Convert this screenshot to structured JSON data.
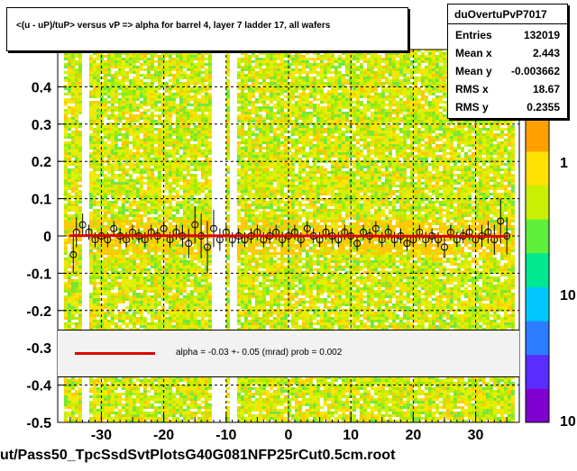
{
  "title": "<(u - uP)/tuP> versus   vP => alpha for barrel 4, layer 7 ladder 17, all wafers",
  "stats": {
    "name": "duOvertuPvP7017",
    "rows": [
      {
        "label": "Entries",
        "value": "132019"
      },
      {
        "label": "Mean x",
        "value": "2.443"
      },
      {
        "label": "Mean y",
        "value": "-0.003662"
      },
      {
        "label": "RMS x",
        "value": "18.67"
      },
      {
        "label": "RMS y",
        "value": "0.2355"
      }
    ]
  },
  "fit": {
    "text": "alpha =   -0.03 +-  0.05 (mrad) prob = 0.002",
    "line_color": "#e00000"
  },
  "footer": "ut/Pass50_TpcSsdSvtPlotsG40G081NFP25rCut0.5cm.root",
  "chart_data": {
    "type": "heatmap",
    "xlim": [
      -37,
      37
    ],
    "ylim": [
      -0.5,
      0.5
    ],
    "x_ticks": [
      -30,
      -20,
      -10,
      0,
      10,
      20,
      30
    ],
    "x_tick_labels": [
      "-30",
      "-20",
      "-10",
      "0",
      "10",
      "20",
      "30"
    ],
    "y_ticks": [
      -0.5,
      -0.4,
      -0.3,
      -0.2,
      -0.1,
      0,
      0.1,
      0.2,
      0.3,
      0.4
    ],
    "y_tick_labels": [
      "-0.5",
      "-0.4",
      "-0.3",
      "-0.2",
      "-0.1",
      "0",
      "0.1",
      "0.2",
      "0.3",
      "0.4"
    ],
    "grid": true,
    "color_scale": {
      "type": "log",
      "labels": [
        "1",
        "10",
        "10"
      ],
      "colors": [
        "#8000d0",
        "#5a2cff",
        "#2c7cff",
        "#00c8ff",
        "#00e890",
        "#5ff03c",
        "#c8f000",
        "#ffe000",
        "#ffa000",
        "#ff4000",
        "#e00000"
      ]
    },
    "empty_bands_x": [
      [
        -33.5,
        -32.5
      ],
      [
        -12.5,
        -10.5
      ],
      [
        -9.5,
        -8.5
      ]
    ],
    "fit_line": {
      "slope_mrad": -0.03,
      "intercept": 0.0
    },
    "profile_points": [
      {
        "x": -34.5,
        "y": -0.05,
        "err": 0.05
      },
      {
        "x": -34,
        "y": 0.01,
        "err": 0.04
      },
      {
        "x": -33,
        "y": 0.03,
        "err": 0.03
      },
      {
        "x": -32,
        "y": 0.01,
        "err": 0.02
      },
      {
        "x": -31,
        "y": -0.01,
        "err": 0.02
      },
      {
        "x": -30,
        "y": 0.0,
        "err": 0.02
      },
      {
        "x": -29,
        "y": -0.01,
        "err": 0.02
      },
      {
        "x": -28,
        "y": 0.02,
        "err": 0.02
      },
      {
        "x": -27,
        "y": 0.0,
        "err": 0.02
      },
      {
        "x": -26,
        "y": -0.01,
        "err": 0.02
      },
      {
        "x": -25,
        "y": 0.01,
        "err": 0.02
      },
      {
        "x": -24,
        "y": 0.0,
        "err": 0.02
      },
      {
        "x": -23,
        "y": -0.01,
        "err": 0.02
      },
      {
        "x": -22,
        "y": 0.01,
        "err": 0.02
      },
      {
        "x": -21,
        "y": 0.0,
        "err": 0.02
      },
      {
        "x": -20,
        "y": 0.02,
        "err": 0.02
      },
      {
        "x": -19,
        "y": -0.01,
        "err": 0.02
      },
      {
        "x": -18,
        "y": 0.01,
        "err": 0.02
      },
      {
        "x": -17,
        "y": 0.0,
        "err": 0.03
      },
      {
        "x": -16,
        "y": -0.02,
        "err": 0.04
      },
      {
        "x": -15,
        "y": 0.03,
        "err": 0.05
      },
      {
        "x": -14,
        "y": 0.0,
        "err": 0.06
      },
      {
        "x": -13,
        "y": -0.03,
        "err": 0.07
      },
      {
        "x": -12,
        "y": 0.02,
        "err": 0.05
      },
      {
        "x": -11,
        "y": -0.01,
        "err": 0.03
      },
      {
        "x": -10,
        "y": 0.01,
        "err": 0.02
      },
      {
        "x": -9,
        "y": -0.01,
        "err": 0.02
      },
      {
        "x": -8,
        "y": 0.0,
        "err": 0.02
      },
      {
        "x": -7,
        "y": -0.01,
        "err": 0.02
      },
      {
        "x": -6,
        "y": 0.0,
        "err": 0.02
      },
      {
        "x": -5,
        "y": 0.01,
        "err": 0.02
      },
      {
        "x": -4,
        "y": -0.01,
        "err": 0.02
      },
      {
        "x": -3,
        "y": 0.0,
        "err": 0.02
      },
      {
        "x": -2,
        "y": 0.01,
        "err": 0.02
      },
      {
        "x": -1,
        "y": -0.01,
        "err": 0.02
      },
      {
        "x": 0,
        "y": 0.0,
        "err": 0.02
      },
      {
        "x": 1,
        "y": 0.01,
        "err": 0.02
      },
      {
        "x": 2,
        "y": -0.01,
        "err": 0.02
      },
      {
        "x": 3,
        "y": 0.02,
        "err": 0.02
      },
      {
        "x": 4,
        "y": 0.0,
        "err": 0.02
      },
      {
        "x": 5,
        "y": -0.01,
        "err": 0.02
      },
      {
        "x": 6,
        "y": 0.01,
        "err": 0.02
      },
      {
        "x": 7,
        "y": 0.0,
        "err": 0.02
      },
      {
        "x": 8,
        "y": -0.01,
        "err": 0.02
      },
      {
        "x": 9,
        "y": 0.01,
        "err": 0.02
      },
      {
        "x": 10,
        "y": 0.0,
        "err": 0.02
      },
      {
        "x": 11,
        "y": -0.02,
        "err": 0.02
      },
      {
        "x": 12,
        "y": 0.01,
        "err": 0.02
      },
      {
        "x": 13,
        "y": 0.0,
        "err": 0.02
      },
      {
        "x": 14,
        "y": 0.02,
        "err": 0.02
      },
      {
        "x": 15,
        "y": -0.01,
        "err": 0.02
      },
      {
        "x": 16,
        "y": 0.01,
        "err": 0.02
      },
      {
        "x": 17,
        "y": -0.01,
        "err": 0.02
      },
      {
        "x": 18,
        "y": 0.0,
        "err": 0.02
      },
      {
        "x": 19,
        "y": -0.02,
        "err": 0.02
      },
      {
        "x": 20,
        "y": -0.01,
        "err": 0.02
      },
      {
        "x": 21,
        "y": 0.01,
        "err": 0.02
      },
      {
        "x": 22,
        "y": -0.01,
        "err": 0.02
      },
      {
        "x": 23,
        "y": 0.0,
        "err": 0.02
      },
      {
        "x": 24,
        "y": -0.01,
        "err": 0.02
      },
      {
        "x": 25,
        "y": -0.03,
        "err": 0.03
      },
      {
        "x": 26,
        "y": 0.01,
        "err": 0.02
      },
      {
        "x": 27,
        "y": -0.01,
        "err": 0.02
      },
      {
        "x": 28,
        "y": 0.0,
        "err": 0.02
      },
      {
        "x": 29,
        "y": 0.01,
        "err": 0.02
      },
      {
        "x": 30,
        "y": -0.01,
        "err": 0.02
      },
      {
        "x": 31,
        "y": 0.0,
        "err": 0.03
      },
      {
        "x": 32,
        "y": 0.01,
        "err": 0.03
      },
      {
        "x": 33,
        "y": -0.01,
        "err": 0.04
      },
      {
        "x": 34,
        "y": 0.04,
        "err": 0.06
      },
      {
        "x": 35,
        "y": 0.0,
        "err": 0.05
      }
    ]
  }
}
